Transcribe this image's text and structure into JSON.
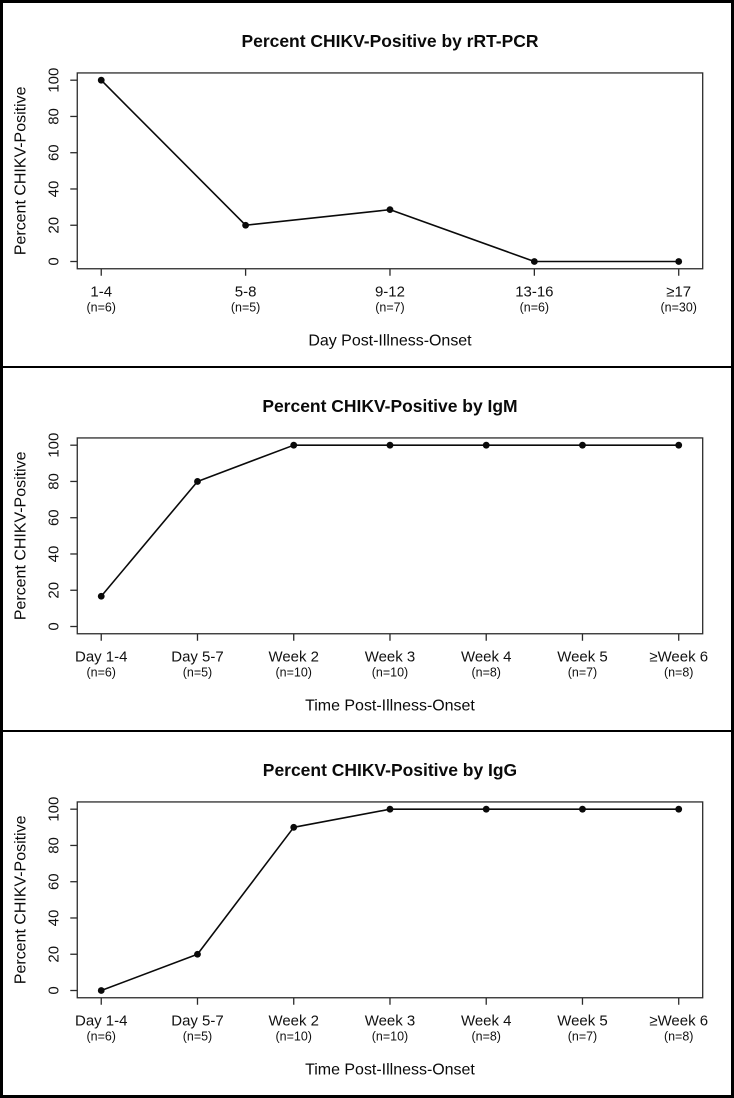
{
  "figure": {
    "background_color": "#ffffff",
    "outer_border_color": "#000000",
    "divider_color": "#000000",
    "line_color": "#0a0a0a",
    "point_color": "#0a0a0a",
    "box_color": "#2b2b2b"
  },
  "chart_data": [
    {
      "type": "line",
      "title": "Percent CHIKV-Positive by rRT-PCR",
      "xlabel": "Day Post-Illness-Onset",
      "ylabel": "Percent CHIKV-Positive",
      "ylim": [
        0,
        100
      ],
      "yticks": [
        0,
        20,
        40,
        60,
        80,
        100
      ],
      "grid": false,
      "legend": null,
      "categories": [
        "1-4",
        "5-8",
        "9-12",
        "13-16",
        "≥17"
      ],
      "n_labels": [
        "(n=6)",
        "(n=5)",
        "(n=7)",
        "(n=6)",
        "(n=30)"
      ],
      "values": [
        100,
        20,
        28.6,
        0,
        0
      ]
    },
    {
      "type": "line",
      "title": "Percent CHIKV-Positive by IgM",
      "xlabel": "Time Post-Illness-Onset",
      "ylabel": "Percent CHIKV-Positive",
      "ylim": [
        0,
        100
      ],
      "yticks": [
        0,
        20,
        40,
        60,
        80,
        100
      ],
      "grid": false,
      "legend": null,
      "categories": [
        "Day 1-4",
        "Day 5-7",
        "Week 2",
        "Week 3",
        "Week 4",
        "Week 5",
        "≥Week 6"
      ],
      "n_labels": [
        "(n=6)",
        "(n=5)",
        "(n=10)",
        "(n=10)",
        "(n=8)",
        "(n=7)",
        "(n=8)"
      ],
      "values": [
        16.7,
        80,
        100,
        100,
        100,
        100,
        100
      ]
    },
    {
      "type": "line",
      "title": "Percent CHIKV-Positive by IgG",
      "xlabel": "Time Post-Illness-Onset",
      "ylabel": "Percent CHIKV-Positive",
      "ylim": [
        0,
        100
      ],
      "yticks": [
        0,
        20,
        40,
        60,
        80,
        100
      ],
      "grid": false,
      "legend": null,
      "categories": [
        "Day 1-4",
        "Day 5-7",
        "Week 2",
        "Week 3",
        "Week 4",
        "Week 5",
        "≥Week 6"
      ],
      "n_labels": [
        "(n=6)",
        "(n=5)",
        "(n=10)",
        "(n=10)",
        "(n=8)",
        "(n=7)",
        "(n=8)"
      ],
      "values": [
        0,
        20,
        90,
        100,
        100,
        100,
        100
      ]
    }
  ]
}
